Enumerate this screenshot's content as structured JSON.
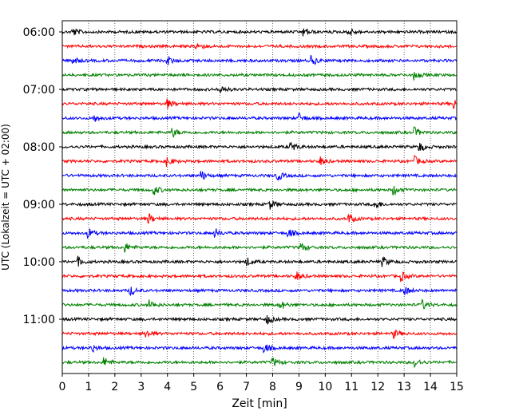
{
  "chart_data": {
    "type": "line",
    "title": "",
    "xlabel": "Zeit  [min]",
    "ylabel": "UTC (Lokalzeit = UTC + 02:00)",
    "xlim": [
      0,
      15
    ],
    "x_ticks": [
      "0",
      "1",
      "2",
      "3",
      "4",
      "5",
      "6",
      "7",
      "8",
      "9",
      "10",
      "11",
      "12",
      "13",
      "14",
      "15"
    ],
    "y_ticks": [
      "06:00",
      "07:00",
      "08:00",
      "09:00",
      "10:00",
      "11:00"
    ],
    "grid": "vertical-dotted",
    "trace_interval_minutes": 15,
    "traces": [
      {
        "start": "06:00",
        "color": "#000000",
        "events": [
          0.4,
          9.2,
          10.9
        ]
      },
      {
        "start": "06:15",
        "color": "#ff0000",
        "events": [
          5.1
        ]
      },
      {
        "start": "06:30",
        "color": "#0000ff",
        "events": [
          0.4,
          4.0,
          9.5
        ]
      },
      {
        "start": "06:45",
        "color": "#008000",
        "events": [
          13.4
        ]
      },
      {
        "start": "07:00",
        "color": "#000000",
        "events": [
          6.0
        ]
      },
      {
        "start": "07:15",
        "color": "#ff0000",
        "events": [
          4.0,
          14.9
        ]
      },
      {
        "start": "07:30",
        "color": "#0000ff",
        "events": [
          1.2,
          9.0
        ]
      },
      {
        "start": "07:45",
        "color": "#008000",
        "events": [
          4.2,
          13.4
        ]
      },
      {
        "start": "08:00",
        "color": "#000000",
        "events": [
          8.7,
          13.6
        ]
      },
      {
        "start": "08:15",
        "color": "#ff0000",
        "events": [
          4.0,
          9.8,
          13.4
        ]
      },
      {
        "start": "08:30",
        "color": "#0000ff",
        "events": [
          5.3,
          8.2
        ]
      },
      {
        "start": "08:45",
        "color": "#008000",
        "events": [
          3.5,
          12.6
        ]
      },
      {
        "start": "09:00",
        "color": "#000000",
        "events": [
          7.9,
          11.9
        ]
      },
      {
        "start": "09:15",
        "color": "#ff0000",
        "events": [
          3.3,
          10.9
        ]
      },
      {
        "start": "09:30",
        "color": "#0000ff",
        "events": [
          1.0,
          5.8,
          8.6
        ]
      },
      {
        "start": "09:45",
        "color": "#008000",
        "events": [
          2.4,
          9.1
        ]
      },
      {
        "start": "10:00",
        "color": "#000000",
        "events": [
          0.6,
          7.0,
          12.2
        ]
      },
      {
        "start": "10:15",
        "color": "#ff0000",
        "events": [
          8.9,
          12.9
        ]
      },
      {
        "start": "10:30",
        "color": "#0000ff",
        "events": [
          2.6,
          13.0
        ]
      },
      {
        "start": "10:45",
        "color": "#008000",
        "events": [
          3.3,
          8.3,
          13.7
        ]
      },
      {
        "start": "11:00",
        "color": "#000000",
        "events": [
          7.8
        ]
      },
      {
        "start": "11:15",
        "color": "#ff0000",
        "events": [
          3.2,
          12.6
        ]
      },
      {
        "start": "11:30",
        "color": "#0000ff",
        "events": [
          1.1,
          7.7
        ]
      },
      {
        "start": "11:45",
        "color": "#008000",
        "events": [
          1.6,
          8.0,
          13.4
        ]
      }
    ]
  }
}
